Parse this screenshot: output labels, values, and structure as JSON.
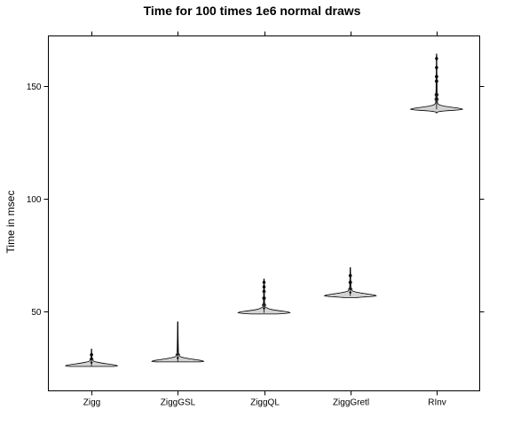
{
  "chart_data": {
    "type": "violin",
    "title": "Time for 100 times 1e6 normal draws",
    "xlabel": "",
    "ylabel": "Time in msec",
    "categories": [
      "Zigg",
      "ZiggGSL",
      "ZiggQL",
      "ZiggGretl",
      "RInv"
    ],
    "yticks": [
      50,
      100,
      150
    ],
    "ylim": [
      15,
      172
    ],
    "fill_color": "#d3d3d3",
    "series": [
      {
        "name": "Zigg",
        "mode": 26.0,
        "min": 25.8,
        "max": 33.5,
        "outliers": [
          27.5,
          29.0,
          31.0
        ]
      },
      {
        "name": "ZiggGSL",
        "mode": 28.0,
        "min": 27.8,
        "max": 45.5,
        "outliers": [
          29.5,
          31.0
        ]
      },
      {
        "name": "ZiggQL",
        "mode": 49.5,
        "min": 49.0,
        "max": 64.5,
        "outliers": [
          51.5,
          53.0,
          56.0,
          59.0,
          61.0,
          63.0
        ]
      },
      {
        "name": "ZiggGretl",
        "mode": 57.0,
        "min": 56.2,
        "max": 69.5,
        "outliers": [
          58.5,
          60.0,
          63.0,
          66.0
        ]
      },
      {
        "name": "RInv",
        "mode": 139.5,
        "min": 137.8,
        "max": 164.0,
        "outliers": [
          144.0,
          146.0,
          152.0,
          154.0,
          158.0,
          162.0
        ]
      }
    ]
  }
}
